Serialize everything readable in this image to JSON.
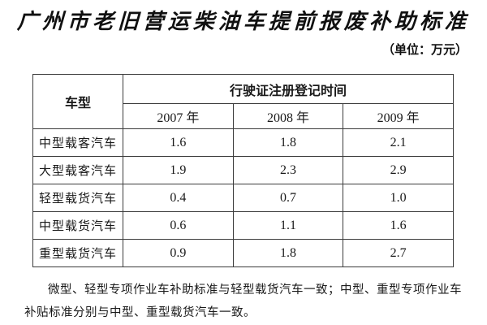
{
  "page": {
    "title": "广州市老旧营运柴油车提前报废补助标准",
    "unit_note": "（单位：万元）",
    "footnote": "微型、轻型专项作业车补助标准与轻型载货汽车一致；中型、重型专项作业车补贴标准分别与中型、重型载货汽车一致。"
  },
  "table": {
    "col1_header": "车型",
    "group_header": "行驶证注册登记时间",
    "year_headers": [
      "2007 年",
      "2008 年",
      "2009 年"
    ],
    "rows": [
      {
        "label": "中型载客汽车",
        "values": [
          "1.6",
          "1.8",
          "2.1"
        ]
      },
      {
        "label": "大型载客汽车",
        "values": [
          "1.9",
          "2.3",
          "2.9"
        ]
      },
      {
        "label": "轻型载货汽车",
        "values": [
          "0.4",
          "0.7",
          "1.0"
        ]
      },
      {
        "label": "中型载货汽车",
        "values": [
          "0.6",
          "1.1",
          "1.6"
        ]
      },
      {
        "label": "重型载货汽车",
        "values": [
          "0.9",
          "1.8",
          "2.7"
        ]
      }
    ]
  }
}
